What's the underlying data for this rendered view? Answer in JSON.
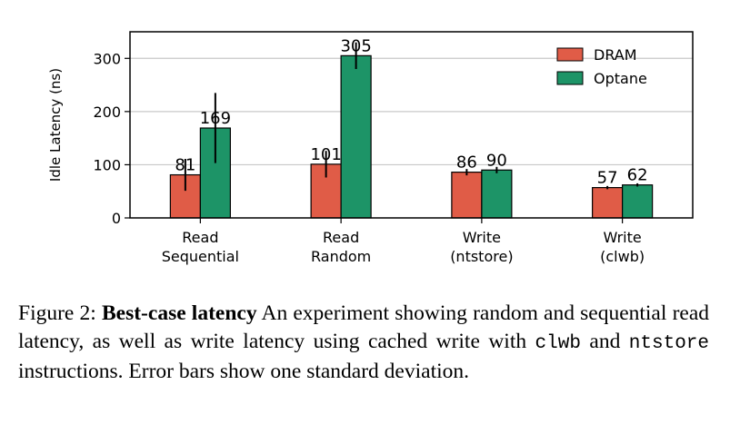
{
  "chart_data": {
    "type": "bar",
    "ylabel": "Idle Latency (ns)",
    "xlabel": "",
    "ylim": [
      0,
      350
    ],
    "yticks": [
      0,
      100,
      200,
      300
    ],
    "grid": "horizontal",
    "legend_position": "top-right",
    "categories": [
      [
        "Read",
        "Sequential"
      ],
      [
        "Read",
        "Random"
      ],
      [
        "Write",
        "(ntstore)"
      ],
      [
        "Write",
        "(clwb)"
      ]
    ],
    "series": [
      {
        "name": "DRAM",
        "color": "#e05c47",
        "values": [
          81,
          101,
          86,
          57
        ],
        "error": [
          30,
          25,
          6,
          3
        ]
      },
      {
        "name": "Optane",
        "color": "#1d9467",
        "values": [
          169,
          305,
          90,
          62
        ],
        "error": [
          66,
          25,
          6,
          3
        ]
      }
    ]
  },
  "caption": {
    "prefix": "Figure 2: ",
    "bold": "Best-case latency",
    "part1": " An experiment showing random and sequential read latency, as well as write latency using cached write with ",
    "code1": "clwb",
    "part2": " and ",
    "code2": "ntstore",
    "part3": " instructions. Error bars show one standard deviation."
  }
}
